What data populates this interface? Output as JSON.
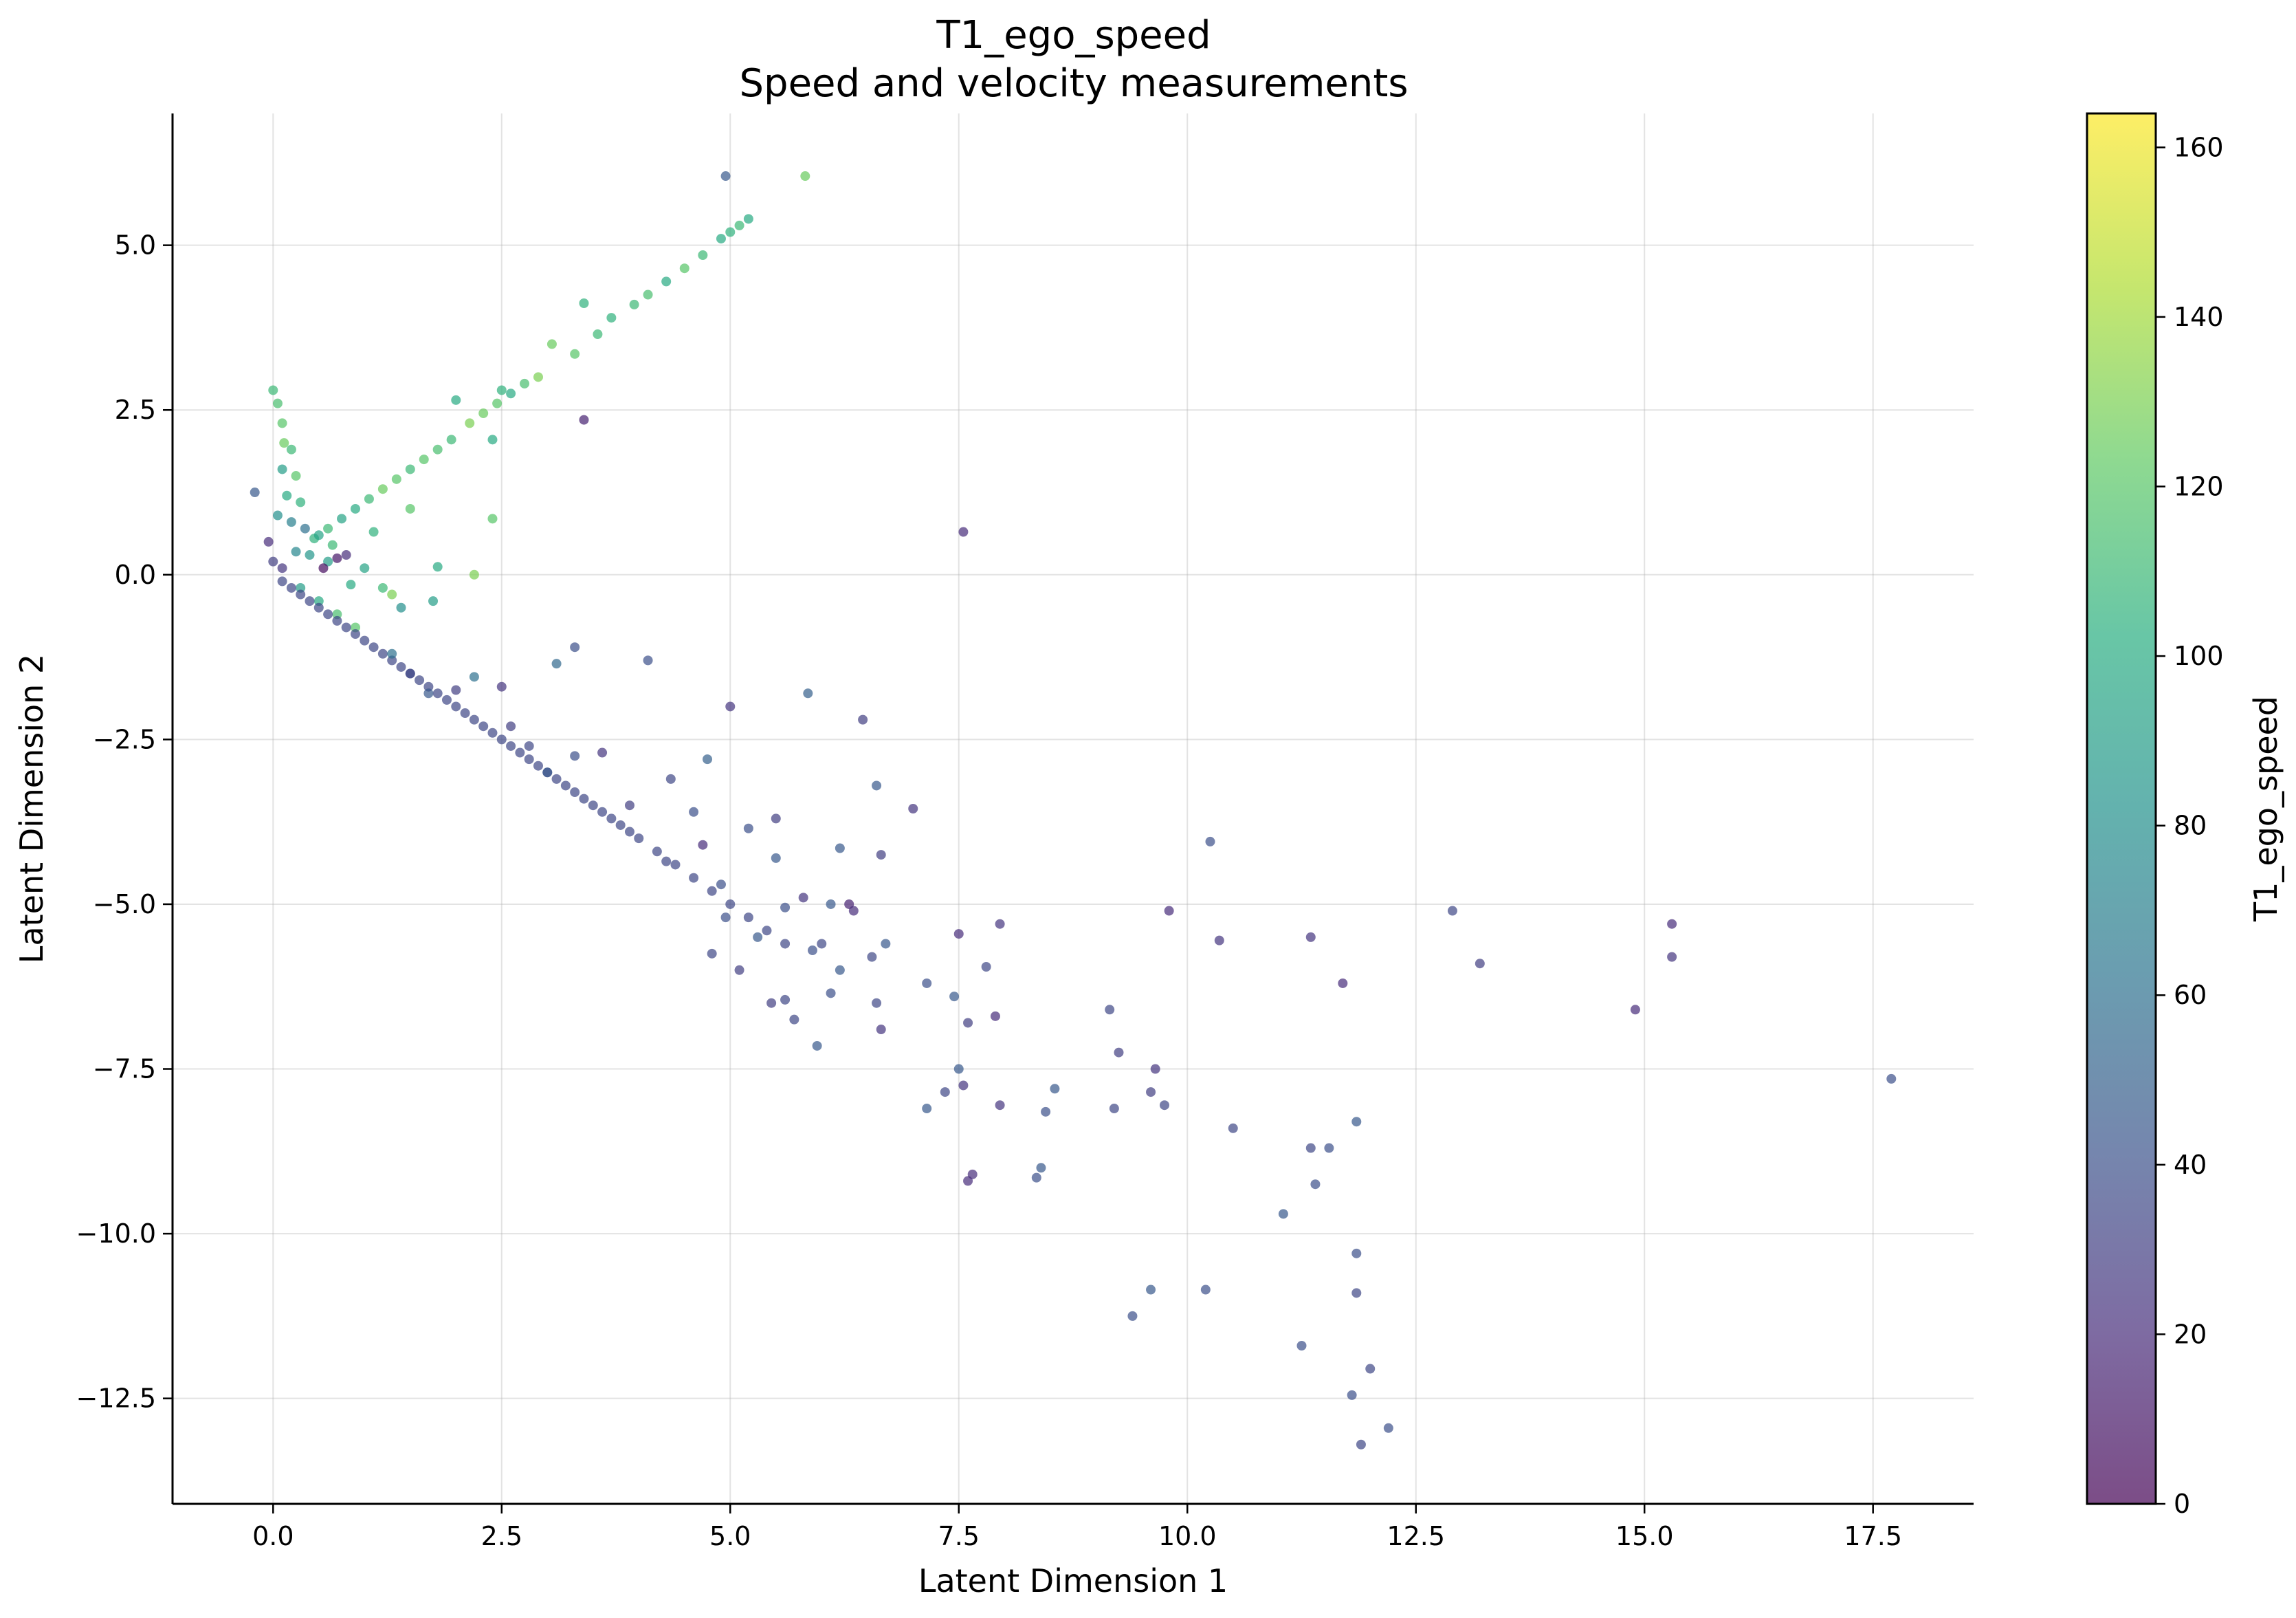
{
  "chart_data": {
    "type": "scatter",
    "title": "T1_ego_speed",
    "subtitle": "Speed and velocity measurements",
    "xlabel": "Latent Dimension 1",
    "ylabel": "Latent Dimension 2",
    "xlim": [
      -1.1,
      18.6
    ],
    "ylim": [
      -14.1,
      7.0
    ],
    "x_ticks": [
      {
        "value": 0.0,
        "label": "0.0"
      },
      {
        "value": 2.5,
        "label": "2.5"
      },
      {
        "value": 5.0,
        "label": "5.0"
      },
      {
        "value": 7.5,
        "label": "7.5"
      },
      {
        "value": 10.0,
        "label": "10.0"
      },
      {
        "value": 12.5,
        "label": "12.5"
      },
      {
        "value": 15.0,
        "label": "15.0"
      },
      {
        "value": 17.5,
        "label": "17.5"
      }
    ],
    "y_ticks": [
      {
        "value": 5.0,
        "label": "5.0"
      },
      {
        "value": 2.5,
        "label": "2.5"
      },
      {
        "value": 0.0,
        "label": "0.0"
      },
      {
        "value": -2.5,
        "label": "−2.5"
      },
      {
        "value": -5.0,
        "label": "−5.0"
      },
      {
        "value": -7.5,
        "label": "−7.5"
      },
      {
        "value": -10.0,
        "label": "−10.0"
      },
      {
        "value": -12.5,
        "label": "−12.5"
      }
    ],
    "grid": true,
    "colorbar": {
      "label": "T1_ego_speed",
      "colormap": "viridis",
      "alpha": 0.7,
      "range": [
        0,
        164
      ],
      "ticks": [
        {
          "value": 0,
          "label": "0"
        },
        {
          "value": 20,
          "label": "20"
        },
        {
          "value": 40,
          "label": "40"
        },
        {
          "value": 60,
          "label": "60"
        },
        {
          "value": 80,
          "label": "80"
        },
        {
          "value": 100,
          "label": "100"
        },
        {
          "value": 120,
          "label": "120"
        },
        {
          "value": 140,
          "label": "140"
        },
        {
          "value": 160,
          "label": "160"
        }
      ]
    },
    "points": [
      [
        4.95,
        6.05,
        45
      ],
      [
        5.82,
        6.05,
        125
      ],
      [
        5.2,
        5.4,
        100
      ],
      [
        5.1,
        5.3,
        110
      ],
      [
        5.0,
        5.2,
        105
      ],
      [
        4.9,
        5.1,
        100
      ],
      [
        4.7,
        4.85,
        110
      ],
      [
        4.5,
        4.65,
        120
      ],
      [
        4.3,
        4.45,
        100
      ],
      [
        4.1,
        4.25,
        115
      ],
      [
        3.95,
        4.1,
        110
      ],
      [
        3.7,
        3.9,
        105
      ],
      [
        3.4,
        4.12,
        105
      ],
      [
        3.55,
        3.65,
        110
      ],
      [
        3.3,
        3.35,
        120
      ],
      [
        3.05,
        3.5,
        125
      ],
      [
        2.9,
        3.0,
        130
      ],
      [
        2.75,
        2.9,
        115
      ],
      [
        2.6,
        2.75,
        100
      ],
      [
        2.45,
        2.6,
        120
      ],
      [
        2.3,
        2.45,
        125
      ],
      [
        2.15,
        2.3,
        130
      ],
      [
        2.0,
        2.65,
        100
      ],
      [
        2.5,
        2.8,
        105
      ],
      [
        2.4,
        2.05,
        100
      ],
      [
        1.95,
        2.05,
        110
      ],
      [
        1.8,
        1.9,
        115
      ],
      [
        1.65,
        1.75,
        120
      ],
      [
        1.5,
        1.6,
        110
      ],
      [
        1.35,
        1.45,
        120
      ],
      [
        1.2,
        1.3,
        125
      ],
      [
        1.05,
        1.15,
        110
      ],
      [
        0.9,
        1.0,
        100
      ],
      [
        0.75,
        0.85,
        95
      ],
      [
        0.6,
        0.7,
        110
      ],
      [
        0.45,
        0.55,
        105
      ],
      [
        3.4,
        2.35,
        15
      ],
      [
        2.4,
        0.85,
        120
      ],
      [
        2.2,
        0.0,
        130
      ],
      [
        1.8,
        0.12,
        100
      ],
      [
        1.75,
        -0.4,
        90
      ],
      [
        1.4,
        -0.5,
        80
      ],
      [
        1.2,
        -0.2,
        110
      ],
      [
        1.0,
        0.1,
        95
      ],
      [
        0.0,
        2.8,
        110
      ],
      [
        0.05,
        2.6,
        115
      ],
      [
        0.1,
        2.3,
        120
      ],
      [
        0.12,
        2.0,
        125
      ],
      [
        0.2,
        1.9,
        110
      ],
      [
        0.25,
        1.5,
        120
      ],
      [
        0.1,
        1.6,
        90
      ],
      [
        0.15,
        1.2,
        100
      ],
      [
        0.3,
        1.1,
        105
      ],
      [
        0.05,
        0.9,
        80
      ],
      [
        0.2,
        0.8,
        70
      ],
      [
        0.35,
        0.7,
        60
      ],
      [
        0.5,
        0.6,
        95
      ],
      [
        0.4,
        0.3,
        85
      ],
      [
        0.25,
        0.35,
        75
      ],
      [
        0.6,
        0.2,
        90
      ],
      [
        0.8,
        0.3,
        20
      ],
      [
        0.7,
        0.25,
        10
      ],
      [
        0.55,
        0.1,
        5
      ],
      [
        0.1,
        0.1,
        25
      ],
      [
        -0.2,
        1.25,
        45
      ],
      [
        -0.05,
        0.5,
        20
      ],
      [
        0.0,
        0.2,
        30
      ],
      [
        0.3,
        -0.2,
        90
      ],
      [
        0.5,
        -0.4,
        100
      ],
      [
        0.7,
        -0.6,
        115
      ],
      [
        0.9,
        -0.8,
        120
      ],
      [
        1.3,
        -0.3,
        130
      ],
      [
        0.85,
        -0.15,
        100
      ],
      [
        0.65,
        0.45,
        110
      ],
      [
        1.1,
        0.65,
        105
      ],
      [
        1.5,
        1.0,
        120
      ],
      [
        0.1,
        -0.1,
        35
      ],
      [
        0.2,
        -0.2,
        35
      ],
      [
        0.3,
        -0.3,
        35
      ],
      [
        0.4,
        -0.4,
        35
      ],
      [
        0.5,
        -0.5,
        35
      ],
      [
        0.6,
        -0.6,
        35
      ],
      [
        0.7,
        -0.7,
        35
      ],
      [
        0.8,
        -0.8,
        35
      ],
      [
        0.9,
        -0.9,
        35
      ],
      [
        1.0,
        -1.0,
        35
      ],
      [
        1.1,
        -1.1,
        35
      ],
      [
        1.2,
        -1.2,
        35
      ],
      [
        1.3,
        -1.3,
        35
      ],
      [
        1.4,
        -1.4,
        35
      ],
      [
        1.5,
        -1.5,
        35
      ],
      [
        1.6,
        -1.6,
        35
      ],
      [
        1.7,
        -1.7,
        35
      ],
      [
        1.8,
        -1.8,
        35
      ],
      [
        1.9,
        -1.9,
        35
      ],
      [
        2.0,
        -2.0,
        35
      ],
      [
        2.1,
        -2.1,
        35
      ],
      [
        2.2,
        -2.2,
        35
      ],
      [
        2.3,
        -2.3,
        35
      ],
      [
        2.4,
        -2.4,
        35
      ],
      [
        2.5,
        -2.5,
        35
      ],
      [
        2.6,
        -2.6,
        35
      ],
      [
        2.7,
        -2.7,
        35
      ],
      [
        2.8,
        -2.8,
        35
      ],
      [
        2.9,
        -2.9,
        35
      ],
      [
        3.0,
        -3.0,
        35
      ],
      [
        3.1,
        -3.1,
        35
      ],
      [
        3.2,
        -3.2,
        35
      ],
      [
        3.3,
        -3.3,
        35
      ],
      [
        3.4,
        -3.4,
        35
      ],
      [
        3.5,
        -3.5,
        35
      ],
      [
        3.6,
        -3.6,
        35
      ],
      [
        3.7,
        -3.7,
        35
      ],
      [
        3.8,
        -3.8,
        35
      ],
      [
        3.9,
        -3.9,
        35
      ],
      [
        4.0,
        -4.0,
        35
      ],
      [
        4.2,
        -4.2,
        35
      ],
      [
        4.4,
        -4.4,
        35
      ],
      [
        4.6,
        -4.6,
        35
      ],
      [
        4.8,
        -4.8,
        35
      ],
      [
        5.0,
        -5.0,
        35
      ],
      [
        5.2,
        -5.2,
        35
      ],
      [
        5.4,
        -5.4,
        35
      ],
      [
        5.6,
        -5.6,
        35
      ],
      [
        3.3,
        -1.1,
        40
      ],
      [
        3.1,
        -1.35,
        55
      ],
      [
        2.5,
        -1.7,
        25
      ],
      [
        2.2,
        -1.55,
        60
      ],
      [
        2.0,
        -1.75,
        30
      ],
      [
        1.7,
        -1.8,
        45
      ],
      [
        1.5,
        -1.5,
        35
      ],
      [
        1.3,
        -1.2,
        60
      ],
      [
        4.1,
        -1.3,
        40
      ],
      [
        5.0,
        -2.0,
        25
      ],
      [
        5.85,
        -1.8,
        50
      ],
      [
        6.45,
        -2.2,
        30
      ],
      [
        4.75,
        -2.8,
        50
      ],
      [
        4.35,
        -3.1,
        35
      ],
      [
        3.9,
        -3.5,
        30
      ],
      [
        3.6,
        -2.7,
        25
      ],
      [
        3.3,
        -2.75,
        40
      ],
      [
        3.0,
        -3.0,
        45
      ],
      [
        2.8,
        -2.6,
        35
      ],
      [
        2.6,
        -2.3,
        30
      ],
      [
        6.6,
        -3.2,
        45
      ],
      [
        7.0,
        -3.55,
        25
      ],
      [
        6.65,
        -4.25,
        30
      ],
      [
        6.2,
        -4.15,
        45
      ],
      [
        5.5,
        -3.7,
        30
      ],
      [
        5.2,
        -3.85,
        40
      ],
      [
        4.7,
        -4.1,
        20
      ],
      [
        4.3,
        -4.35,
        35
      ],
      [
        4.6,
        -3.6,
        40
      ],
      [
        5.5,
        -4.3,
        45
      ],
      [
        5.8,
        -4.9,
        25
      ],
      [
        5.6,
        -5.05,
        40
      ],
      [
        6.1,
        -5.0,
        45
      ],
      [
        6.3,
        -5.0,
        15
      ],
      [
        6.0,
        -5.6,
        35
      ],
      [
        5.3,
        -5.5,
        45
      ],
      [
        4.95,
        -5.2,
        40
      ],
      [
        5.1,
        -6.0,
        30
      ],
      [
        5.6,
        -6.45,
        35
      ],
      [
        5.9,
        -5.7,
        40
      ],
      [
        6.2,
        -6.0,
        45
      ],
      [
        6.1,
        -6.35,
        40
      ],
      [
        6.6,
        -6.5,
        35
      ],
      [
        6.65,
        -6.9,
        25
      ],
      [
        6.7,
        -5.6,
        45
      ],
      [
        6.55,
        -5.8,
        35
      ],
      [
        5.95,
        -7.15,
        45
      ],
      [
        7.15,
        -6.2,
        40
      ],
      [
        7.5,
        -5.45,
        20
      ],
      [
        7.8,
        -5.95,
        35
      ],
      [
        7.95,
        -5.3,
        25
      ],
      [
        7.6,
        -6.8,
        30
      ],
      [
        7.45,
        -6.4,
        45
      ],
      [
        7.9,
        -6.7,
        20
      ],
      [
        7.5,
        -7.5,
        45
      ],
      [
        7.55,
        -7.75,
        25
      ],
      [
        7.35,
        -7.85,
        35
      ],
      [
        7.15,
        -8.1,
        45
      ],
      [
        7.95,
        -8.05,
        25
      ],
      [
        7.65,
        -9.1,
        20
      ],
      [
        7.6,
        -9.2,
        20
      ],
      [
        8.35,
        -9.15,
        40
      ],
      [
        8.4,
        -9.0,
        45
      ],
      [
        8.45,
        -8.15,
        40
      ],
      [
        8.55,
        -7.8,
        45
      ],
      [
        9.15,
        -6.6,
        35
      ],
      [
        9.25,
        -7.25,
        30
      ],
      [
        9.2,
        -8.1,
        35
      ],
      [
        9.65,
        -7.5,
        25
      ],
      [
        9.6,
        -7.85,
        30
      ],
      [
        9.75,
        -8.05,
        35
      ],
      [
        9.8,
        -5.1,
        20
      ],
      [
        10.25,
        -4.05,
        40
      ],
      [
        10.35,
        -5.55,
        25
      ],
      [
        10.5,
        -8.4,
        35
      ],
      [
        11.05,
        -9.7,
        45
      ],
      [
        11.35,
        -8.7,
        35
      ],
      [
        11.4,
        -9.25,
        40
      ],
      [
        11.35,
        -5.5,
        25
      ],
      [
        11.55,
        -8.7,
        40
      ],
      [
        11.7,
        -6.2,
        20
      ],
      [
        11.85,
        -8.3,
        45
      ],
      [
        11.85,
        -10.3,
        40
      ],
      [
        11.85,
        -10.9,
        35
      ],
      [
        11.8,
        -12.45,
        40
      ],
      [
        11.9,
        -13.2,
        35
      ],
      [
        12.0,
        -12.05,
        35
      ],
      [
        12.2,
        -12.95,
        40
      ],
      [
        11.25,
        -11.7,
        40
      ],
      [
        10.2,
        -10.85,
        40
      ],
      [
        9.6,
        -10.85,
        45
      ],
      [
        9.4,
        -11.25,
        40
      ],
      [
        7.55,
        0.65,
        20
      ],
      [
        12.9,
        -5.1,
        35
      ],
      [
        13.2,
        -5.9,
        30
      ],
      [
        14.9,
        -6.6,
        20
      ],
      [
        15.3,
        -5.3,
        20
      ],
      [
        15.3,
        -5.8,
        25
      ],
      [
        17.7,
        -7.65,
        40
      ],
      [
        4.9,
        -4.7,
        40
      ],
      [
        5.45,
        -6.5,
        30
      ],
      [
        5.7,
        -6.75,
        35
      ],
      [
        6.35,
        -5.1,
        20
      ],
      [
        4.8,
        -5.75,
        35
      ]
    ]
  }
}
